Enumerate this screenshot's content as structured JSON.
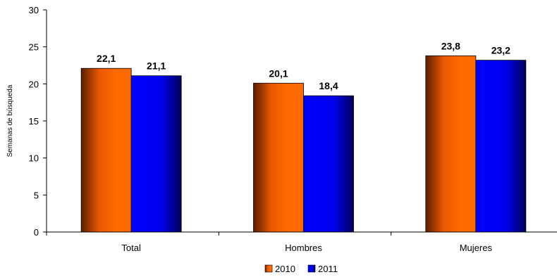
{
  "chart_data": {
    "type": "bar",
    "categories": [
      "Total",
      "Hombres",
      "Mujeres"
    ],
    "series": [
      {
        "name": "2010",
        "values": [
          22.1,
          20.1,
          23.8
        ],
        "labels": [
          "22,1",
          "20,1",
          "23,8"
        ],
        "color": "#FF6600"
      },
      {
        "name": "2011",
        "values": [
          21.1,
          18.4,
          23.2
        ],
        "labels": [
          "21,1",
          "18,4",
          "23,2"
        ],
        "color": "#0000FF"
      }
    ],
    "title": "",
    "xlabel": "",
    "ylabel": "Semanas de búsqueda",
    "ylim": [
      0,
      30
    ],
    "yticks": [
      0,
      5,
      10,
      15,
      20,
      25,
      30
    ],
    "ytick_labels": [
      "0",
      "5",
      "10",
      "15",
      "20",
      "25",
      "30"
    ],
    "grid": false,
    "legend_position": "bottom"
  }
}
